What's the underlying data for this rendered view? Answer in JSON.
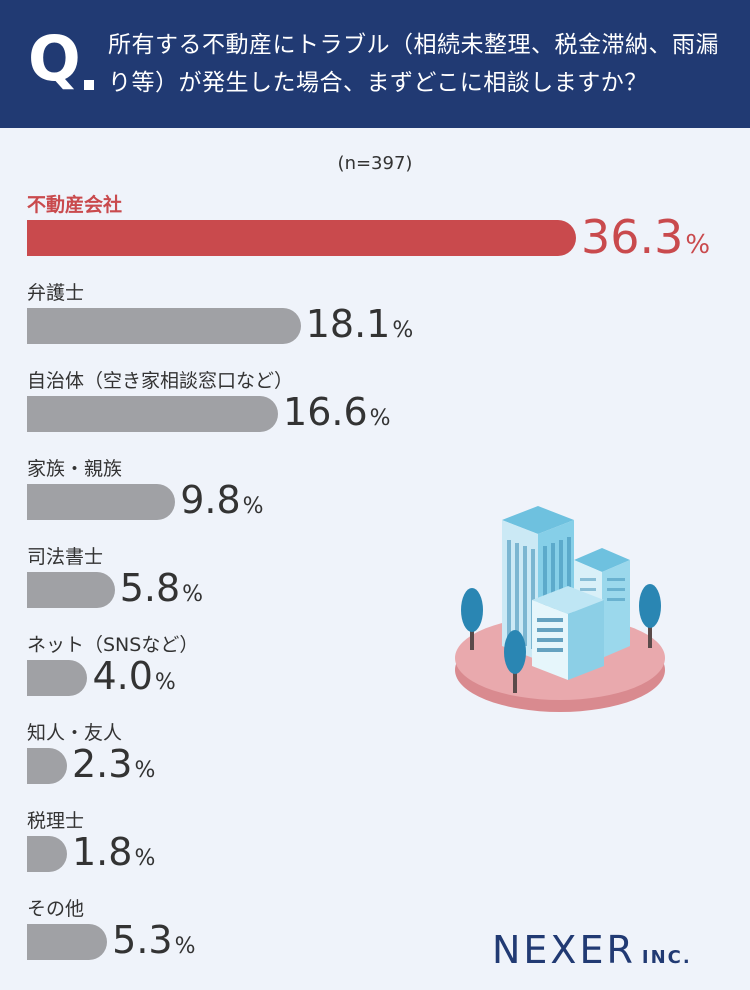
{
  "question": {
    "mark": "Q",
    "text": "所有する不動産にトラブル（相続未整理、税金滞納、雨漏り等）が発生した場合、まずどこに相談しますか？"
  },
  "sample_size": "(n=397)",
  "unit": "%",
  "colors": {
    "header": "#213a73",
    "highlight": "#c94a4d",
    "bar": "#a0a1a5",
    "background": "#eff3fa"
  },
  "logo": {
    "main": "NEXER",
    "suffix": "INC."
  },
  "chart_data": {
    "type": "bar",
    "orientation": "horizontal",
    "categories": [
      "不動産会社",
      "弁護士",
      "自治体（空き家相談窓口など）",
      "家族・親族",
      "司法書士",
      "ネット（SNSなど）",
      "知人・友人",
      "税理士",
      "その他"
    ],
    "values": [
      36.3,
      18.1,
      16.6,
      9.8,
      5.8,
      4.0,
      2.3,
      1.8,
      5.3
    ],
    "value_labels": [
      "36.3",
      "18.1",
      "16.6",
      "9.8",
      "5.8",
      "4.0",
      "2.3",
      "1.8",
      "5.3"
    ],
    "highlight_index": 0
  }
}
